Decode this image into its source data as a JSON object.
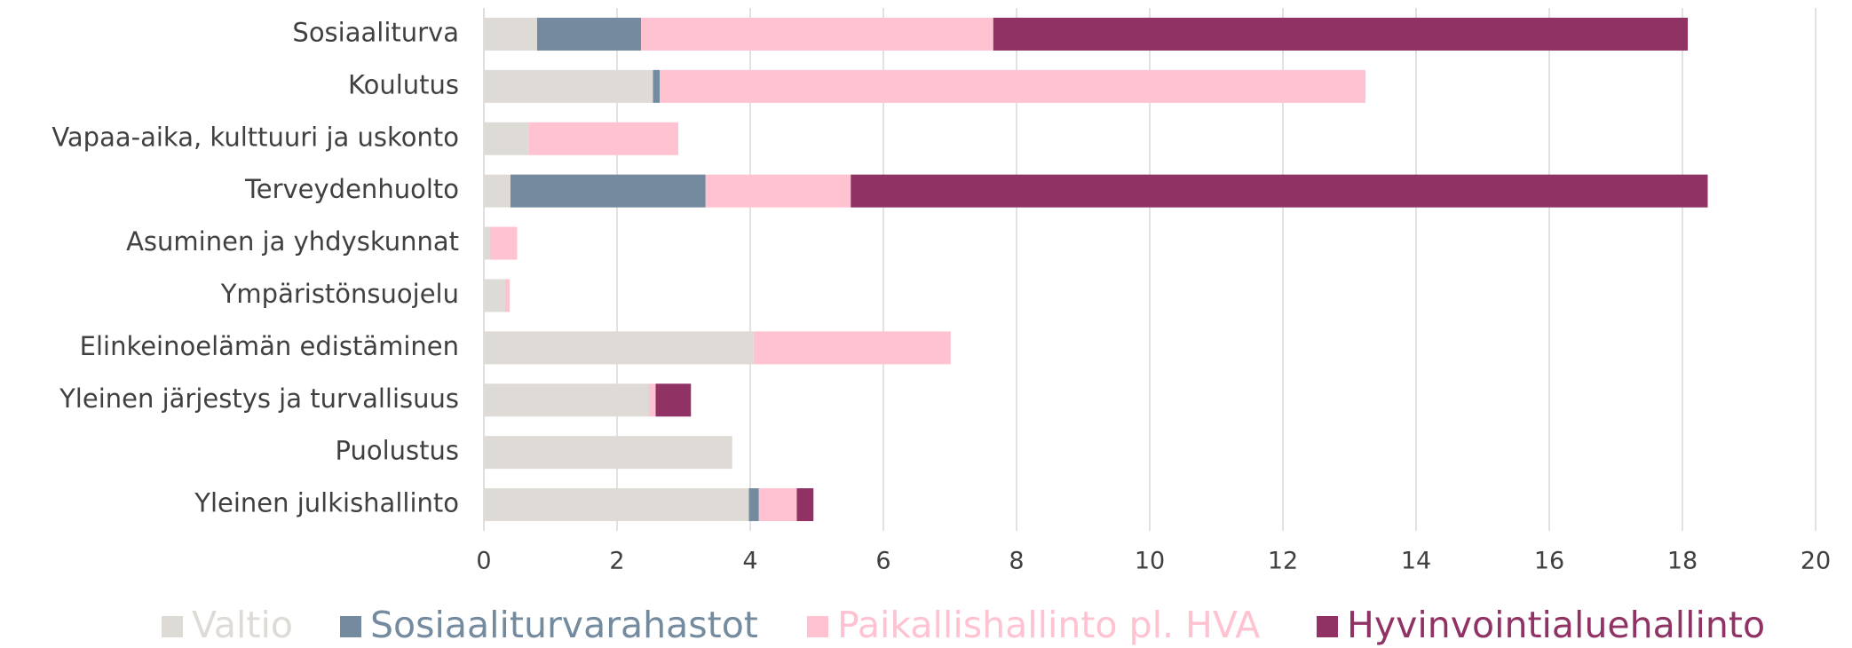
{
  "chart_data": {
    "type": "stacked-barh",
    "categories": [
      "Sosiaaliturva",
      "Koulutus",
      "Vapaa-aika, kulttuuri ja uskonto",
      "Terveydenhuolto",
      "Asuminen ja yhdyskunnat",
      "Ympäristönsuojelu",
      "Elinkeinoelämän edistäminen",
      "Yleinen järjestys ja turvallisuus",
      "Puolustus",
      "Yleinen julkishallinto"
    ],
    "series": [
      {
        "name": "Valtio",
        "color": "#dedad6",
        "values": [
          0.8,
          2.54,
          0.67,
          0.4,
          0.1,
          0.32,
          4.05,
          2.48,
          3.73,
          3.98
        ]
      },
      {
        "name": "Sosiaaliturvarahastot",
        "color": "#738a9f",
        "values": [
          1.56,
          0.1,
          0,
          2.93,
          0,
          0,
          0,
          0,
          0,
          0.15
        ]
      },
      {
        "name": "Paikallishallinto pl. HVA",
        "color": "#ffc2d1",
        "values": [
          5.29,
          10.6,
          2.25,
          2.18,
          0.4,
          0.07,
          2.96,
          0.1,
          0,
          0.57
        ]
      },
      {
        "name": "Hyvinvointialuehallinto",
        "color": "#913264",
        "values": [
          10.43,
          0,
          0,
          12.87,
          0,
          0,
          0,
          0.53,
          0,
          0.25
        ]
      }
    ],
    "xlim": [
      0,
      20
    ],
    "xticks": [
      0,
      2,
      4,
      6,
      8,
      10,
      12,
      14,
      16,
      18,
      20
    ],
    "grid": true,
    "legend": "bottom"
  }
}
